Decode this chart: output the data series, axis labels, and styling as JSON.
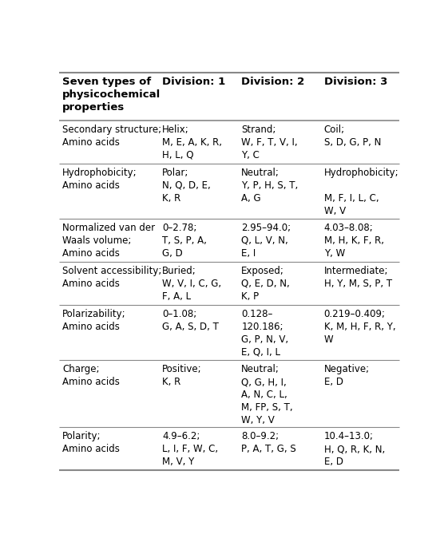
{
  "title_col0": "Seven types of\nphysicochemical\nproperties",
  "title_col1": "Division: 1",
  "title_col2": "Division: 2",
  "title_col3": "Division: 3",
  "rows": [
    {
      "col0": "Secondary structure;\nAmino acids",
      "col1": "Helix;\nM, E, A, K, R,\nH, L, Q",
      "col2": "Strand;\nW, F, T, V, I,\nY, C",
      "col3": "Coil;\nS, D, G, P, N"
    },
    {
      "col0": "Hydrophobicity;\nAmino acids",
      "col1": "Polar;\nN, Q, D, E,\nK, R",
      "col2": "Neutral;\nY, P, H, S, T,\nA, G",
      "col3": "Hydrophobicity;\n\nM, F, I, L, C,\nW, V"
    },
    {
      "col0": "Normalized van der\nWaals volume;\nAmino acids",
      "col1": "0–2.78;\nT, S, P, A,\nG, D",
      "col2": "2.95–94.0;\nQ, L, V, N,\nE, I",
      "col3": "4.03–8.08;\nM, H, K, F, R,\nY, W"
    },
    {
      "col0": "Solvent accessibility;\nAmino acids",
      "col1": "Buried;\nW, V, I, C, G,\nF, A, L",
      "col2": "Exposed;\nQ, E, D, N,\nK, P",
      "col3": "Intermediate;\nH, Y, M, S, P, T"
    },
    {
      "col0": "Polarizability;\nAmino acids",
      "col1": "0–1.08;\nG, A, S, D, T",
      "col2": "0.128–\n120.186;\nG, P, N, V,\nE, Q, I, L",
      "col3": "0.219–0.409;\nK, M, H, F, R, Y,\nW"
    },
    {
      "col0": "Charge;\nAmino acids",
      "col1": "Positive;\nK, R",
      "col2": "Neutral;\nQ, G, H, I,\nA, N, C, L,\nM, FP, S, T,\nW, Y, V",
      "col3": "Negative;\nE, D"
    },
    {
      "col0": "Polarity;\nAmino acids",
      "col1": "4.9–6.2;\nL, I, F, W, C,\nM, V, Y",
      "col2": "8.0–9.2;\nP, A, T, G, S",
      "col3": "10.4–13.0;\nH, Q, R, K, N,\nE, D"
    }
  ],
  "background_color": "#ffffff",
  "font_size": 8.5,
  "header_font_size": 9.5,
  "text_color": "#000000",
  "line_color": "#888888",
  "fig_width": 5.56,
  "fig_height": 6.74
}
